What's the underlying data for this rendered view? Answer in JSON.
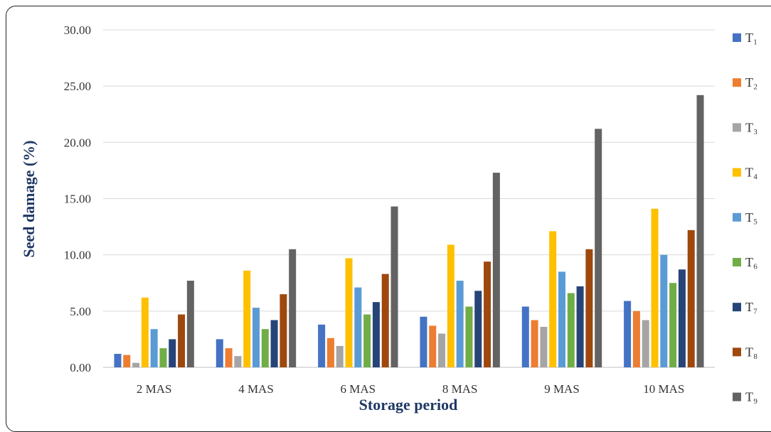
{
  "chart_data": {
    "type": "bar",
    "title": "",
    "xlabel": "Storage period",
    "ylabel": "Seed damage (%)",
    "ylim": [
      0,
      30
    ],
    "yticks": [
      "0.00",
      "5.00",
      "10.00",
      "15.00",
      "20.00",
      "25.00",
      "30.00"
    ],
    "grid": true,
    "legend_position": "right",
    "categories": [
      "2 MAS",
      "4 MAS",
      "6 MAS",
      "8 MAS",
      "9 MAS",
      "10 MAS"
    ],
    "series": [
      {
        "name": "T₁",
        "color": "#4472c4",
        "values": [
          1.2,
          2.5,
          3.8,
          4.5,
          5.4,
          5.9
        ]
      },
      {
        "name": "T₂",
        "color": "#ed7d31",
        "values": [
          1.1,
          1.7,
          2.6,
          3.7,
          4.2,
          5.0
        ]
      },
      {
        "name": "T₃",
        "color": "#a5a5a5",
        "values": [
          0.4,
          1.0,
          1.9,
          3.0,
          3.6,
          4.2
        ]
      },
      {
        "name": "T₄",
        "color": "#ffc000",
        "values": [
          6.2,
          8.6,
          9.7,
          10.9,
          12.1,
          14.1
        ]
      },
      {
        "name": "T₅",
        "color": "#5b9bd5",
        "values": [
          3.4,
          5.3,
          7.1,
          7.7,
          8.5,
          10.0
        ]
      },
      {
        "name": "T₆",
        "color": "#70ad47",
        "values": [
          1.7,
          3.4,
          4.7,
          5.4,
          6.6,
          7.5
        ]
      },
      {
        "name": "T₇",
        "color": "#264478",
        "values": [
          2.5,
          4.2,
          5.8,
          6.8,
          7.2,
          8.7
        ]
      },
      {
        "name": "T₈",
        "color": "#9e480e",
        "values": [
          4.7,
          6.5,
          8.3,
          9.4,
          10.5,
          12.2
        ]
      },
      {
        "name": "T₉",
        "color": "#636363",
        "values": [
          7.7,
          10.5,
          14.3,
          17.3,
          21.2,
          24.2
        ]
      }
    ]
  }
}
